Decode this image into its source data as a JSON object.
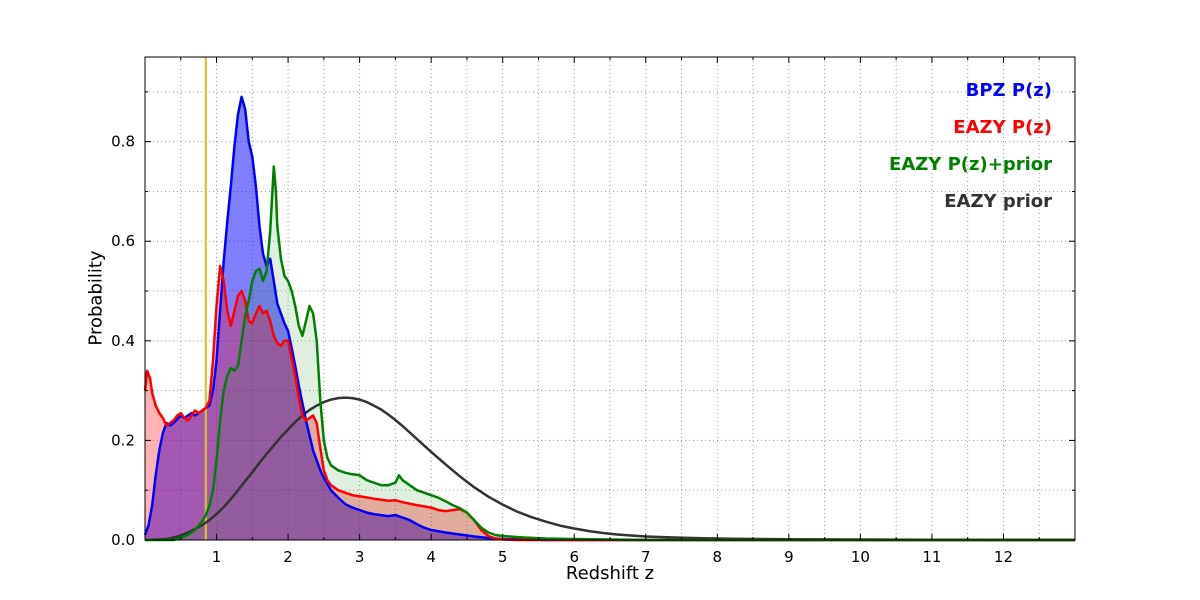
{
  "chart_data": {
    "type": "line",
    "title": "",
    "xlabel": "Redshift z",
    "ylabel": "Probability",
    "xlim": [
      0,
      13
    ],
    "ylim": [
      0,
      0.97
    ],
    "xticks": [
      1,
      2,
      3,
      4,
      5,
      6,
      7,
      8,
      9,
      10,
      11,
      12
    ],
    "yticks": [
      0.0,
      0.2,
      0.4,
      0.6,
      0.8
    ],
    "grid": true,
    "grid_color": "#999999",
    "legend_position": "upper right",
    "marker_line": {
      "x": 0.85,
      "color": "#d4c428"
    },
    "series": [
      {
        "name": "BPZ P(z)",
        "color": "#0000ff",
        "fill": "rgba(0,0,255,0.5)",
        "points": [
          [
            0,
            0.01
          ],
          [
            0.05,
            0.03
          ],
          [
            0.1,
            0.07
          ],
          [
            0.15,
            0.13
          ],
          [
            0.2,
            0.18
          ],
          [
            0.25,
            0.215
          ],
          [
            0.3,
            0.235
          ],
          [
            0.35,
            0.23
          ],
          [
            0.4,
            0.235
          ],
          [
            0.5,
            0.25
          ],
          [
            0.55,
            0.245
          ],
          [
            0.6,
            0.25
          ],
          [
            0.65,
            0.255
          ],
          [
            0.7,
            0.25
          ],
          [
            0.75,
            0.255
          ],
          [
            0.8,
            0.26
          ],
          [
            0.85,
            0.265
          ],
          [
            0.9,
            0.27
          ],
          [
            0.95,
            0.3
          ],
          [
            1.0,
            0.36
          ],
          [
            1.05,
            0.46
          ],
          [
            1.1,
            0.56
          ],
          [
            1.15,
            0.64
          ],
          [
            1.2,
            0.71
          ],
          [
            1.25,
            0.79
          ],
          [
            1.3,
            0.855
          ],
          [
            1.35,
            0.89
          ],
          [
            1.4,
            0.865
          ],
          [
            1.45,
            0.8
          ],
          [
            1.5,
            0.77
          ],
          [
            1.55,
            0.71
          ],
          [
            1.6,
            0.63
          ],
          [
            1.65,
            0.575
          ],
          [
            1.7,
            0.55
          ],
          [
            1.75,
            0.565
          ],
          [
            1.8,
            0.52
          ],
          [
            1.85,
            0.475
          ],
          [
            1.9,
            0.455
          ],
          [
            1.95,
            0.435
          ],
          [
            2.0,
            0.42
          ],
          [
            2.05,
            0.385
          ],
          [
            2.1,
            0.35
          ],
          [
            2.15,
            0.31
          ],
          [
            2.2,
            0.275
          ],
          [
            2.25,
            0.24
          ],
          [
            2.3,
            0.21
          ],
          [
            2.35,
            0.18
          ],
          [
            2.4,
            0.16
          ],
          [
            2.45,
            0.14
          ],
          [
            2.5,
            0.125
          ],
          [
            2.6,
            0.1
          ],
          [
            2.7,
            0.085
          ],
          [
            2.8,
            0.072
          ],
          [
            2.9,
            0.065
          ],
          [
            3.0,
            0.06
          ],
          [
            3.1,
            0.055
          ],
          [
            3.2,
            0.052
          ],
          [
            3.3,
            0.05
          ],
          [
            3.4,
            0.048
          ],
          [
            3.5,
            0.05
          ],
          [
            3.6,
            0.045
          ],
          [
            3.7,
            0.04
          ],
          [
            3.8,
            0.032
          ],
          [
            3.9,
            0.025
          ],
          [
            4.0,
            0.02
          ],
          [
            4.2,
            0.015
          ],
          [
            4.4,
            0.011
          ],
          [
            4.6,
            0.007
          ],
          [
            4.8,
            0.004
          ],
          [
            5.0,
            0.002
          ],
          [
            5.3,
            0.001
          ],
          [
            5.6,
            0
          ],
          [
            13,
            0
          ]
        ]
      },
      {
        "name": "EAZY P(z)",
        "color": "#ff0000",
        "fill": "rgba(255,0,0,0.3)",
        "points": [
          [
            0,
            0.3
          ],
          [
            0.03,
            0.34
          ],
          [
            0.07,
            0.325
          ],
          [
            0.1,
            0.295
          ],
          [
            0.15,
            0.27
          ],
          [
            0.2,
            0.255
          ],
          [
            0.25,
            0.245
          ],
          [
            0.3,
            0.23
          ],
          [
            0.35,
            0.235
          ],
          [
            0.4,
            0.24
          ],
          [
            0.45,
            0.25
          ],
          [
            0.5,
            0.255
          ],
          [
            0.55,
            0.245
          ],
          [
            0.6,
            0.24
          ],
          [
            0.65,
            0.25
          ],
          [
            0.7,
            0.26
          ],
          [
            0.75,
            0.255
          ],
          [
            0.8,
            0.26
          ],
          [
            0.85,
            0.265
          ],
          [
            0.9,
            0.28
          ],
          [
            0.95,
            0.36
          ],
          [
            1.0,
            0.47
          ],
          [
            1.05,
            0.55
          ],
          [
            1.1,
            0.52
          ],
          [
            1.15,
            0.46
          ],
          [
            1.2,
            0.43
          ],
          [
            1.25,
            0.46
          ],
          [
            1.3,
            0.49
          ],
          [
            1.35,
            0.5
          ],
          [
            1.4,
            0.48
          ],
          [
            1.45,
            0.44
          ],
          [
            1.5,
            0.435
          ],
          [
            1.55,
            0.455
          ],
          [
            1.6,
            0.47
          ],
          [
            1.65,
            0.455
          ],
          [
            1.7,
            0.46
          ],
          [
            1.75,
            0.44
          ],
          [
            1.8,
            0.41
          ],
          [
            1.85,
            0.395
          ],
          [
            1.9,
            0.39
          ],
          [
            1.95,
            0.4
          ],
          [
            2.0,
            0.4
          ],
          [
            2.05,
            0.365
          ],
          [
            2.1,
            0.33
          ],
          [
            2.15,
            0.285
          ],
          [
            2.2,
            0.25
          ],
          [
            2.25,
            0.24
          ],
          [
            2.3,
            0.245
          ],
          [
            2.35,
            0.25
          ],
          [
            2.4,
            0.235
          ],
          [
            2.45,
            0.185
          ],
          [
            2.5,
            0.14
          ],
          [
            2.55,
            0.12
          ],
          [
            2.6,
            0.11
          ],
          [
            2.7,
            0.1
          ],
          [
            2.8,
            0.095
          ],
          [
            2.9,
            0.09
          ],
          [
            3.0,
            0.088
          ],
          [
            3.2,
            0.083
          ],
          [
            3.4,
            0.079
          ],
          [
            3.5,
            0.08
          ],
          [
            3.6,
            0.076
          ],
          [
            3.8,
            0.07
          ],
          [
            4.0,
            0.065
          ],
          [
            4.1,
            0.06
          ],
          [
            4.2,
            0.058
          ],
          [
            4.3,
            0.06
          ],
          [
            4.4,
            0.062
          ],
          [
            4.5,
            0.055
          ],
          [
            4.6,
            0.04
          ],
          [
            4.7,
            0.02
          ],
          [
            4.8,
            0.008
          ],
          [
            4.9,
            0.003
          ],
          [
            5.0,
            0.001
          ],
          [
            5.2,
            0
          ],
          [
            13,
            0
          ]
        ]
      },
      {
        "name": "EAZY P(z)+prior",
        "color": "#008000",
        "fill": "rgba(0,128,0,0.12)",
        "points": [
          [
            0,
            0
          ],
          [
            0.4,
            0
          ],
          [
            0.5,
            0.004
          ],
          [
            0.6,
            0.01
          ],
          [
            0.7,
            0.02
          ],
          [
            0.8,
            0.038
          ],
          [
            0.85,
            0.05
          ],
          [
            0.9,
            0.068
          ],
          [
            0.95,
            0.1
          ],
          [
            1.0,
            0.16
          ],
          [
            1.05,
            0.24
          ],
          [
            1.1,
            0.3
          ],
          [
            1.15,
            0.33
          ],
          [
            1.2,
            0.345
          ],
          [
            1.25,
            0.34
          ],
          [
            1.3,
            0.35
          ],
          [
            1.35,
            0.4
          ],
          [
            1.4,
            0.45
          ],
          [
            1.45,
            0.48
          ],
          [
            1.5,
            0.52
          ],
          [
            1.55,
            0.54
          ],
          [
            1.6,
            0.545
          ],
          [
            1.65,
            0.52
          ],
          [
            1.7,
            0.54
          ],
          [
            1.75,
            0.62
          ],
          [
            1.8,
            0.75
          ],
          [
            1.83,
            0.7
          ],
          [
            1.85,
            0.63
          ],
          [
            1.9,
            0.565
          ],
          [
            1.95,
            0.53
          ],
          [
            2.0,
            0.52
          ],
          [
            2.05,
            0.5
          ],
          [
            2.1,
            0.47
          ],
          [
            2.15,
            0.43
          ],
          [
            2.2,
            0.41
          ],
          [
            2.25,
            0.44
          ],
          [
            2.3,
            0.47
          ],
          [
            2.35,
            0.455
          ],
          [
            2.4,
            0.4
          ],
          [
            2.45,
            0.28
          ],
          [
            2.5,
            0.2
          ],
          [
            2.55,
            0.165
          ],
          [
            2.6,
            0.15
          ],
          [
            2.7,
            0.14
          ],
          [
            2.8,
            0.135
          ],
          [
            2.9,
            0.132
          ],
          [
            3.0,
            0.13
          ],
          [
            3.1,
            0.12
          ],
          [
            3.2,
            0.115
          ],
          [
            3.3,
            0.11
          ],
          [
            3.4,
            0.11
          ],
          [
            3.5,
            0.115
          ],
          [
            3.55,
            0.13
          ],
          [
            3.6,
            0.12
          ],
          [
            3.7,
            0.11
          ],
          [
            3.8,
            0.1
          ],
          [
            3.9,
            0.095
          ],
          [
            4.0,
            0.09
          ],
          [
            4.1,
            0.085
          ],
          [
            4.2,
            0.078
          ],
          [
            4.3,
            0.07
          ],
          [
            4.4,
            0.064
          ],
          [
            4.5,
            0.055
          ],
          [
            4.6,
            0.04
          ],
          [
            4.7,
            0.025
          ],
          [
            4.8,
            0.015
          ],
          [
            4.9,
            0.01
          ],
          [
            5.0,
            0.008
          ],
          [
            5.3,
            0.005
          ],
          [
            5.6,
            0.003
          ],
          [
            6.0,
            0.002
          ],
          [
            6.5,
            0.001
          ],
          [
            7.0,
            0
          ],
          [
            13,
            0
          ]
        ]
      },
      {
        "name": "EAZY prior",
        "color": "#333333",
        "fill": "none",
        "points": [
          [
            0,
            0
          ],
          [
            0.3,
            0.002
          ],
          [
            0.4,
            0.005
          ],
          [
            0.5,
            0.009
          ],
          [
            0.6,
            0.015
          ],
          [
            0.7,
            0.022
          ],
          [
            0.8,
            0.03
          ],
          [
            0.9,
            0.04
          ],
          [
            1.0,
            0.052
          ],
          [
            1.1,
            0.066
          ],
          [
            1.2,
            0.082
          ],
          [
            1.3,
            0.1
          ],
          [
            1.4,
            0.118
          ],
          [
            1.5,
            0.136
          ],
          [
            1.6,
            0.155
          ],
          [
            1.7,
            0.173
          ],
          [
            1.8,
            0.19
          ],
          [
            1.9,
            0.207
          ],
          [
            2.0,
            0.222
          ],
          [
            2.1,
            0.237
          ],
          [
            2.2,
            0.25
          ],
          [
            2.3,
            0.261
          ],
          [
            2.4,
            0.27
          ],
          [
            2.5,
            0.277
          ],
          [
            2.6,
            0.282
          ],
          [
            2.7,
            0.285
          ],
          [
            2.8,
            0.286
          ],
          [
            2.9,
            0.285
          ],
          [
            3.0,
            0.282
          ],
          [
            3.1,
            0.277
          ],
          [
            3.2,
            0.27
          ],
          [
            3.3,
            0.262
          ],
          [
            3.4,
            0.252
          ],
          [
            3.5,
            0.241
          ],
          [
            3.6,
            0.229
          ],
          [
            3.7,
            0.216
          ],
          [
            3.8,
            0.203
          ],
          [
            3.9,
            0.19
          ],
          [
            4.0,
            0.177
          ],
          [
            4.2,
            0.152
          ],
          [
            4.4,
            0.128
          ],
          [
            4.6,
            0.106
          ],
          [
            4.8,
            0.087
          ],
          [
            5.0,
            0.071
          ],
          [
            5.2,
            0.057
          ],
          [
            5.4,
            0.046
          ],
          [
            5.6,
            0.037
          ],
          [
            5.8,
            0.029
          ],
          [
            6.0,
            0.023
          ],
          [
            6.2,
            0.018
          ],
          [
            6.4,
            0.014
          ],
          [
            6.6,
            0.011
          ],
          [
            6.8,
            0.009
          ],
          [
            7.0,
            0.007
          ],
          [
            7.4,
            0.005
          ],
          [
            7.8,
            0.0035
          ],
          [
            8.2,
            0.0025
          ],
          [
            8.6,
            0.002
          ],
          [
            9.0,
            0.0015
          ],
          [
            10.0,
            0.001
          ],
          [
            11.0,
            0.0005
          ],
          [
            12.0,
            0.0003
          ],
          [
            13.0,
            0.0002
          ]
        ]
      }
    ]
  }
}
